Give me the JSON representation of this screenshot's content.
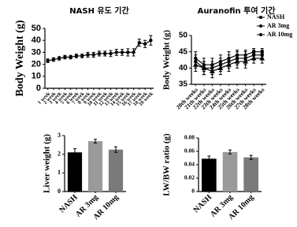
{
  "chart_data": [
    {
      "type": "line",
      "title": "NASH 유도 기간",
      "y_label": "Body Weight (g)",
      "categories": [
        "1 week",
        "2 week",
        "3 week",
        "4 week",
        "5 week",
        "6 week",
        "7 week",
        "8 week",
        "9 week",
        "10 week",
        "11 week",
        "12 week",
        "13 week",
        "14 week",
        "15 week",
        "16 week",
        "17 week",
        "18 week",
        "19 week"
      ],
      "series": [
        {
          "name": "NASH",
          "color": "#000000",
          "values": [
            23,
            24,
            25,
            26,
            26,
            27,
            27,
            28,
            28,
            29,
            29,
            29,
            30,
            30,
            30,
            30,
            38,
            37,
            40
          ],
          "errors": [
            1.5,
            1.5,
            1.5,
            1.5,
            1.5,
            1.5,
            1.5,
            2,
            2,
            2,
            2,
            2.5,
            2.5,
            2.5,
            3,
            3,
            3,
            3,
            4
          ]
        }
      ],
      "ylim": [
        0,
        50
      ],
      "yticks": [
        0,
        10,
        20,
        30,
        40,
        50
      ],
      "grid": false,
      "legend": false
    },
    {
      "type": "line",
      "title": "Auranofin 투여 기간",
      "y_label": "Body Weight (g)",
      "categories": [
        "20th weeks",
        "21th weeks",
        "22th weeks",
        "23th weeks",
        "24th weeks",
        "25th weeks",
        "26th weeks",
        "27th weeks",
        "28th weeks"
      ],
      "series": [
        {
          "name": "NASH",
          "color": "#000000",
          "values": [
            43,
            41,
            41,
            42,
            43,
            44,
            44,
            45,
            45
          ],
          "errors": [
            2,
            2,
            2,
            2,
            2,
            1.5,
            1.5,
            1,
            1
          ]
        },
        {
          "name": "AR 3mg",
          "color": "#000000",
          "values": [
            42,
            40,
            40,
            41,
            42,
            43,
            43,
            44,
            44
          ],
          "errors": [
            2,
            2,
            2,
            2,
            2,
            2,
            2,
            1.5,
            1.5
          ]
        },
        {
          "name": "AR 10mg",
          "color": "#000000",
          "values": [
            41,
            40,
            39,
            40,
            41,
            42,
            42,
            43,
            43
          ],
          "errors": [
            2,
            2,
            2,
            2,
            2,
            2,
            2,
            1.5,
            1.5
          ]
        }
      ],
      "ylim": [
        35,
        50
      ],
      "yticks": [
        35,
        40,
        45,
        50
      ],
      "grid": false,
      "legend": "top-right"
    },
    {
      "type": "bar",
      "y_label": "Liver weight (g)",
      "categories": [
        "NASH",
        "AR 3mg",
        "AR 10mg"
      ],
      "values": [
        2.1,
        2.7,
        2.25
      ],
      "errors": [
        0.2,
        0.1,
        0.15
      ],
      "colors": [
        "#000000",
        "#9a9a9a",
        "#7a7a7a"
      ],
      "ylim": [
        0,
        3
      ],
      "yticks": [
        0,
        1,
        2,
        3
      ],
      "grid": false
    },
    {
      "type": "bar",
      "y_label": "LW/BW ratio (g)",
      "categories": [
        "NASH",
        "AR 3mg",
        "AR 10mg"
      ],
      "values": [
        0.049,
        0.059,
        0.051
      ],
      "errors": [
        0.004,
        0.003,
        0.003
      ],
      "colors": [
        "#000000",
        "#9a9a9a",
        "#7a7a7a"
      ],
      "ylim": [
        0,
        0.08
      ],
      "yticks": [
        0,
        {
          "value": 0.02,
          "label": "0.02"
        },
        {
          "value": 0.04,
          "label": "0.04"
        },
        {
          "value": 0.06,
          "label": "0.06"
        },
        {
          "value": 0.08,
          "label": "0.08"
        }
      ],
      "grid": false
    }
  ]
}
